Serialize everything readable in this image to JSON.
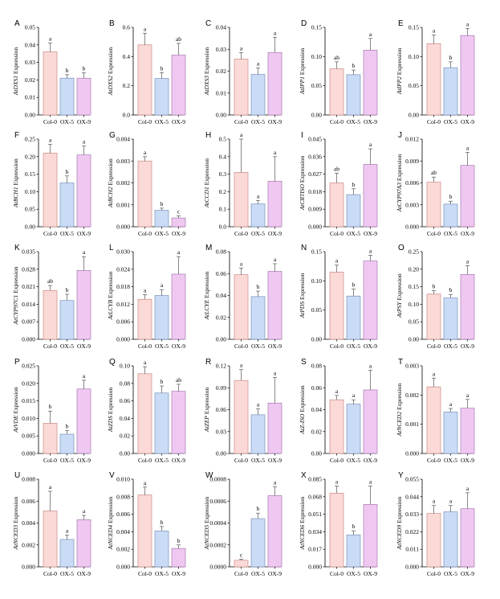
{
  "colors": {
    "col0_fill": "#fbd9d6",
    "ox5_fill": "#c9dbf5",
    "ox9_fill": "#efc8f2",
    "col0_stroke": "#c98a86",
    "ox5_stroke": "#7d92bd",
    "ox9_stroke": "#a779b0",
    "axis": "#000000"
  },
  "chart_data": [
    {
      "type": "bar",
      "panel": "A",
      "gene": "AtDXS1",
      "ylabel_suffix": " Expression",
      "categories": [
        "Col-0",
        "OX-5",
        "OX-9"
      ],
      "values": [
        0.036,
        0.021,
        0.021
      ],
      "errors": [
        0.005,
        0.002,
        0.003
      ],
      "letters": [
        "a",
        "b",
        "b"
      ],
      "ylim": [
        0,
        0.05
      ],
      "yticks": [
        "0.00",
        "0.01",
        "0.02",
        "0.03",
        "0.04",
        "0.05"
      ],
      "tickvals": [
        0,
        0.01,
        0.02,
        0.03,
        0.04,
        0.05
      ]
    },
    {
      "type": "bar",
      "panel": "B",
      "gene": "AtDXS2",
      "ylabel_suffix": " Expression",
      "categories": [
        "Col-0",
        "OX-5",
        "OX-9"
      ],
      "values": [
        0.48,
        0.25,
        0.41
      ],
      "errors": [
        0.08,
        0.04,
        0.08
      ],
      "letters": [
        "a",
        "b",
        "ab"
      ],
      "ylim": [
        0,
        0.6
      ],
      "yticks": [
        "0.0",
        "0.2",
        "0.4",
        "0.6"
      ],
      "tickvals": [
        0,
        0.2,
        0.4,
        0.6
      ]
    },
    {
      "type": "bar",
      "panel": "C",
      "gene": "AtDXS3",
      "ylabel_suffix": " Expression",
      "categories": [
        "Col-0",
        "OX-5",
        "OX-9"
      ],
      "values": [
        0.0255,
        0.0185,
        0.0285
      ],
      "errors": [
        0.003,
        0.003,
        0.007
      ],
      "letters": [
        "a",
        "a",
        "a"
      ],
      "ylim": [
        0,
        0.04
      ],
      "yticks": [
        "0.00",
        "0.01",
        "0.02",
        "0.03",
        "0.04"
      ],
      "tickvals": [
        0,
        0.01,
        0.02,
        0.03,
        0.04
      ]
    },
    {
      "type": "bar",
      "panel": "D",
      "gene": "AtIPP1",
      "ylabel_suffix": " Expression",
      "categories": [
        "Col-0",
        "OX-5",
        "OX-9"
      ],
      "values": [
        0.079,
        0.069,
        0.111
      ],
      "errors": [
        0.012,
        0.008,
        0.02
      ],
      "letters": [
        "ab",
        "b",
        "a"
      ],
      "ylim": [
        0,
        0.15
      ],
      "yticks": [
        "0.00",
        "0.05",
        "0.10",
        "0.15"
      ],
      "tickvals": [
        0,
        0.05,
        0.1,
        0.15
      ]
    },
    {
      "type": "bar",
      "panel": "E",
      "gene": "AtIPP2",
      "ylabel_suffix": " Expression",
      "categories": [
        "Col-0",
        "OX-5",
        "OX-9"
      ],
      "values": [
        0.122,
        0.081,
        0.136
      ],
      "errors": [
        0.015,
        0.01,
        0.012
      ],
      "letters": [
        "a",
        "b",
        "a"
      ],
      "ylim": [
        0,
        0.15
      ],
      "yticks": [
        "0.00",
        "0.05",
        "0.10",
        "0.15"
      ],
      "tickvals": [
        0,
        0.05,
        0.1,
        0.15
      ]
    },
    {
      "type": "bar",
      "panel": "F",
      "gene": "AtBCH1",
      "ylabel_suffix": " Expression",
      "categories": [
        "Col-0",
        "OX-5",
        "OX-9"
      ],
      "values": [
        0.21,
        0.125,
        0.205
      ],
      "errors": [
        0.025,
        0.02,
        0.025
      ],
      "letters": [
        "a",
        "b",
        "a"
      ],
      "ylim": [
        0,
        0.25
      ],
      "yticks": [
        "0.00",
        "0.05",
        "0.10",
        "0.15",
        "0.20",
        "0.25"
      ],
      "tickvals": [
        0,
        0.05,
        0.1,
        0.15,
        0.2,
        0.25
      ]
    },
    {
      "type": "bar",
      "panel": "G",
      "gene": "AtBCH2",
      "ylabel_suffix": " Expression",
      "categories": [
        "Col-0",
        "OX-5",
        "OX-9"
      ],
      "values": [
        0.003,
        0.00075,
        0.0004
      ],
      "errors": [
        0.0002,
        0.0001,
        0.0001
      ],
      "letters": [
        "a",
        "b",
        "c"
      ],
      "ylim": [
        0,
        0.004
      ],
      "yticks": [
        "0.000",
        "0.001",
        "0.002",
        "0.003",
        "0.004"
      ],
      "tickvals": [
        0,
        0.001,
        0.002,
        0.003,
        0.004
      ]
    },
    {
      "type": "bar",
      "panel": "H",
      "gene": "AtCCD1",
      "ylabel_suffix": " Expression",
      "categories": [
        "Col-0",
        "OX-5",
        "OX-9"
      ],
      "values": [
        0.31,
        0.13,
        0.26
      ],
      "errors": [
        0.19,
        0.02,
        0.14
      ],
      "letters": [
        "a",
        "a",
        "a"
      ],
      "ylim": [
        0,
        0.5
      ],
      "yticks": [
        "0.0",
        "0.1",
        "0.2",
        "0.3",
        "0.4",
        "0.5"
      ],
      "tickvals": [
        0,
        0.1,
        0.2,
        0.3,
        0.4,
        0.5
      ]
    },
    {
      "type": "bar",
      "panel": "I",
      "gene": "AtCRTISO",
      "ylabel_suffix": " Expression",
      "categories": [
        "Col-0",
        "OX-5",
        "OX-9"
      ],
      "values": [
        0.0225,
        0.0165,
        0.032
      ],
      "errors": [
        0.005,
        0.003,
        0.008
      ],
      "letters": [
        "ab",
        "b",
        "a"
      ],
      "ylim": [
        0,
        0.045
      ],
      "yticks": [
        "0.000",
        "0.009",
        "0.018",
        "0.027",
        "0.036",
        "0.045"
      ],
      "tickvals": [
        0,
        0.009,
        0.018,
        0.027,
        0.036,
        0.045
      ]
    },
    {
      "type": "bar",
      "panel": "J",
      "gene": "AtCYP97A3",
      "ylabel_suffix": " Expression",
      "categories": [
        "Col-0",
        "OX-5",
        "OX-9"
      ],
      "values": [
        0.0061,
        0.0031,
        0.0084
      ],
      "errors": [
        0.0007,
        0.0004,
        0.0018
      ],
      "letters": [
        "ab",
        "b",
        "a"
      ],
      "ylim": [
        0,
        0.012
      ],
      "yticks": [
        "0.000",
        "0.003",
        "0.006",
        "0.009",
        "0.012"
      ],
      "tickvals": [
        0,
        0.003,
        0.006,
        0.009,
        0.012
      ]
    },
    {
      "type": "bar",
      "panel": "K",
      "gene": "AtCYP97C1",
      "ylabel_suffix": " Expression",
      "categories": [
        "Col-0",
        "OX-5",
        "OX-9"
      ],
      "values": [
        0.0195,
        0.0155,
        0.0275
      ],
      "errors": [
        0.002,
        0.0025,
        0.0055
      ],
      "letters": [
        "ab",
        "b",
        "a"
      ],
      "ylim": [
        0,
        0.035
      ],
      "yticks": [
        "0.000",
        "0.007",
        "0.014",
        "0.021",
        "0.028",
        "0.035"
      ],
      "tickvals": [
        0,
        0.007,
        0.014,
        0.021,
        0.028,
        0.035
      ]
    },
    {
      "type": "bar",
      "panel": "L",
      "gene": "AtLCYB",
      "ylabel_suffix": " Expression",
      "categories": [
        "Col-0",
        "OX-5",
        "OX-9"
      ],
      "values": [
        0.0137,
        0.015,
        0.0223
      ],
      "errors": [
        0.0016,
        0.002,
        0.006
      ],
      "letters": [
        "a",
        "a",
        "a"
      ],
      "ylim": [
        0,
        0.03
      ],
      "yticks": [
        "0.000",
        "0.006",
        "0.012",
        "0.018",
        "0.024",
        "0.030"
      ],
      "tickvals": [
        0,
        0.006,
        0.012,
        0.018,
        0.024,
        0.03
      ]
    },
    {
      "type": "bar",
      "panel": "M",
      "gene": "AtLCYE",
      "ylabel_suffix": " Expression",
      "categories": [
        "Col-0",
        "OX-5",
        "OX-9"
      ],
      "values": [
        0.059,
        0.039,
        0.062
      ],
      "errors": [
        0.006,
        0.005,
        0.007
      ],
      "letters": [
        "a",
        "b",
        "a"
      ],
      "ylim": [
        0,
        0.08
      ],
      "yticks": [
        "0.00",
        "0.02",
        "0.04",
        "0.06",
        "0.08"
      ],
      "tickvals": [
        0,
        0.02,
        0.04,
        0.06,
        0.08
      ]
    },
    {
      "type": "bar",
      "panel": "N",
      "gene": "AtPDS",
      "ylabel_suffix": " Expression",
      "categories": [
        "Col-0",
        "OX-5",
        "OX-9"
      ],
      "values": [
        0.115,
        0.074,
        0.134
      ],
      "errors": [
        0.012,
        0.012,
        0.01
      ],
      "letters": [
        "a",
        "b",
        "a"
      ],
      "ylim": [
        0,
        0.15
      ],
      "yticks": [
        "0.00",
        "0.05",
        "0.10",
        "0.15"
      ],
      "tickvals": [
        0,
        0.05,
        0.1,
        0.15
      ]
    },
    {
      "type": "bar",
      "panel": "O",
      "gene": "AtPSY",
      "ylabel_suffix": " Expression",
      "categories": [
        "Col-0",
        "OX-5",
        "OX-9"
      ],
      "values": [
        0.129,
        0.118,
        0.185
      ],
      "errors": [
        0.01,
        0.01,
        0.025
      ],
      "letters": [
        "b",
        "b",
        "a"
      ],
      "ylim": [
        0,
        0.25
      ],
      "yticks": [
        "0.00",
        "0.05",
        "0.10",
        "0.15",
        "0.20",
        "0.25"
      ],
      "tickvals": [
        0,
        0.05,
        0.1,
        0.15,
        0.2,
        0.25
      ]
    },
    {
      "type": "bar",
      "panel": "P",
      "gene": "AtVDE",
      "ylabel_suffix": " Expression",
      "categories": [
        "Col-0",
        "OX-5",
        "OX-9"
      ],
      "values": [
        0.0086,
        0.0055,
        0.0184
      ],
      "errors": [
        0.0035,
        0.001,
        0.0025
      ],
      "letters": [
        "b",
        "b",
        "a"
      ],
      "ylim": [
        0,
        0.025
      ],
      "yticks": [
        "0.000",
        "0.005",
        "0.010",
        "0.015",
        "0.020",
        "0.025"
      ],
      "tickvals": [
        0,
        0.005,
        0.01,
        0.015,
        0.02,
        0.025
      ]
    },
    {
      "type": "bar",
      "panel": "Q",
      "gene": "AtZDS",
      "ylabel_suffix": " Expression",
      "categories": [
        "Col-0",
        "OX-5",
        "OX-9"
      ],
      "values": [
        0.091,
        0.069,
        0.071
      ],
      "errors": [
        0.008,
        0.008,
        0.008
      ],
      "letters": [
        "a",
        "b",
        "ab"
      ],
      "ylim": [
        0,
        0.1
      ],
      "yticks": [
        "0.00",
        "0.02",
        "0.04",
        "0.06",
        "0.08",
        "0.10"
      ],
      "tickvals": [
        0,
        0.02,
        0.04,
        0.06,
        0.08,
        0.1
      ]
    },
    {
      "type": "bar",
      "panel": "R",
      "gene": "AtZEP",
      "ylabel_suffix": " Expression",
      "categories": [
        "Col-0",
        "OX-5",
        "OX-9"
      ],
      "values": [
        0.1,
        0.053,
        0.069
      ],
      "errors": [
        0.015,
        0.008,
        0.035
      ],
      "letters": [
        "a",
        "a",
        "a"
      ],
      "ylim": [
        0,
        0.12
      ],
      "yticks": [
        "0.00",
        "0.03",
        "0.06",
        "0.09",
        "0.12"
      ],
      "tickvals": [
        0,
        0.03,
        0.06,
        0.09,
        0.12
      ]
    },
    {
      "type": "bar",
      "panel": "S",
      "gene": "AtZ-ISO",
      "ylabel_suffix": " Expression",
      "categories": [
        "Col-0",
        "OX-5",
        "OX-9"
      ],
      "values": [
        0.049,
        0.045,
        0.058
      ],
      "errors": [
        0.004,
        0.004,
        0.018
      ],
      "letters": [
        "a",
        "a",
        "a"
      ],
      "ylim": [
        0,
        0.08
      ],
      "yticks": [
        "0.00",
        "0.02",
        "0.04",
        "0.06",
        "0.08"
      ],
      "tickvals": [
        0,
        0.02,
        0.04,
        0.06,
        0.08
      ]
    },
    {
      "type": "bar",
      "panel": "T",
      "gene": "AtNCED2",
      "ylabel_suffix": " Expression",
      "categories": [
        "Col-0",
        "OX-5",
        "OX-9"
      ],
      "values": [
        0.00228,
        0.00142,
        0.00155
      ],
      "errors": [
        0.0003,
        0.00012,
        0.0003
      ],
      "letters": [
        "a",
        "a",
        "a"
      ],
      "ylim": [
        0,
        0.003
      ],
      "yticks": [
        "0.000",
        "0.001",
        "0.002",
        "0.003"
      ],
      "tickvals": [
        0,
        0.001,
        0.002,
        0.003
      ]
    },
    {
      "type": "bar",
      "panel": "U",
      "gene": "AtNCED3",
      "ylabel_suffix": " Expression",
      "categories": [
        "Col-0",
        "OX-5",
        "OX-9"
      ],
      "values": [
        0.0051,
        0.0025,
        0.0043
      ],
      "errors": [
        0.0018,
        0.0004,
        0.0004
      ],
      "letters": [
        "a",
        "a",
        "a"
      ],
      "ylim": [
        0,
        0.008
      ],
      "yticks": [
        "0.000",
        "0.002",
        "0.004",
        "0.006",
        "0.008"
      ],
      "tickvals": [
        0,
        0.002,
        0.004,
        0.006,
        0.008
      ]
    },
    {
      "type": "bar",
      "panel": "V",
      "gene": "AtNCED4",
      "ylabel_suffix": " Expression",
      "categories": [
        "Col-0",
        "OX-5",
        "OX-9"
      ],
      "values": [
        0.0082,
        0.0041,
        0.0021
      ],
      "errors": [
        0.0009,
        0.0005,
        0.0004
      ],
      "letters": [
        "a",
        "b",
        "b"
      ],
      "ylim": [
        0,
        0.01
      ],
      "yticks": [
        "0.000",
        "0.002",
        "0.004",
        "0.006",
        "0.008",
        "0.010"
      ],
      "tickvals": [
        0,
        0.002,
        0.004,
        0.006,
        0.008,
        0.01
      ]
    },
    {
      "type": "bar",
      "panel": "W",
      "gene": "AtNCED5",
      "ylabel_suffix": " Expression",
      "categories": [
        "Col-0",
        "OX-5",
        "OX-9"
      ],
      "values": [
        6e-05,
        0.00044,
        0.00065
      ],
      "errors": [
        1e-05,
        5e-05,
        8e-05
      ],
      "letters": [
        "c",
        "b",
        "a"
      ],
      "ylim": [
        0,
        0.0008
      ],
      "yticks": [
        "0.0000",
        "0.0002",
        "0.0004",
        "0.0006",
        "0.0008"
      ],
      "tickvals": [
        0,
        0.0002,
        0.0004,
        0.0006,
        0.0008
      ]
    },
    {
      "type": "bar",
      "panel": "X",
      "gene": "AtNCED6",
      "ylabel_suffix": " Expression",
      "categories": [
        "Col-0",
        "OX-5",
        "OX-9"
      ],
      "values": [
        0.0715,
        0.031,
        0.0605
      ],
      "errors": [
        0.007,
        0.004,
        0.018
      ],
      "letters": [
        "a",
        "b",
        "a"
      ],
      "ylim": [
        0,
        0.085
      ],
      "yticks": [
        "0.000",
        "0.017",
        "0.034",
        "0.051",
        "0.068",
        "0.085"
      ],
      "tickvals": [
        0,
        0.017,
        0.034,
        0.051,
        0.068,
        0.085
      ]
    },
    {
      "type": "bar",
      "panel": "Y",
      "gene": "AtNCED9",
      "ylabel_suffix": " Expression",
      "categories": [
        "Col-0",
        "OX-5",
        "OX-9"
      ],
      "values": [
        0.0335,
        0.0345,
        0.0365
      ],
      "errors": [
        0.005,
        0.004,
        0.01
      ],
      "letters": [
        "a",
        "a",
        "a"
      ],
      "ylim": [
        0,
        0.055
      ],
      "yticks": [
        "0.000",
        "0.011",
        "0.022",
        "0.033",
        "0.044",
        "0.055"
      ],
      "tickvals": [
        0,
        0.011,
        0.022,
        0.033,
        0.044,
        0.055
      ]
    }
  ]
}
